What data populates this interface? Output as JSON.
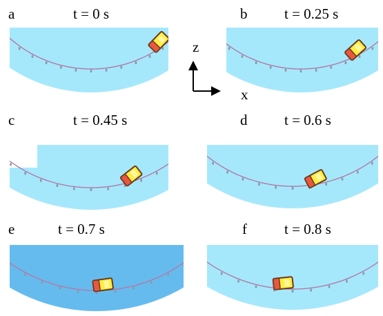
{
  "panels": [
    {
      "letter": "a",
      "time": "t = 0 s",
      "car_angle": -46,
      "car_pos": 0.78,
      "dark": false
    },
    {
      "letter": "b",
      "time": "t = 0.25 s",
      "car_angle": -42,
      "car_pos": 0.72,
      "dark": false
    },
    {
      "letter": "c",
      "time": "t = 0.45 s",
      "car_angle": -38,
      "car_pos": 0.64,
      "dark": false
    },
    {
      "letter": "d",
      "time": "t = 0.6 s",
      "car_angle": -28,
      "car_pos": 0.58,
      "dark": false
    },
    {
      "letter": "e",
      "time": "t = 0.7 s",
      "car_angle": -8,
      "car_pos": 0.52,
      "dark": true
    },
    {
      "letter": "f",
      "time": "t = 0.8 s",
      "car_angle": -6,
      "car_pos": 0.47,
      "dark": false
    }
  ],
  "axes": {
    "vertical": "z",
    "horizontal": "x"
  },
  "colors": {
    "pool": "#a6e8fb",
    "pool_dark": "#66bbee",
    "track": "#b07aa8",
    "car_body": "#ffee44",
    "car_rear": "#e9573f",
    "car_outline": "#6b3a1a"
  }
}
